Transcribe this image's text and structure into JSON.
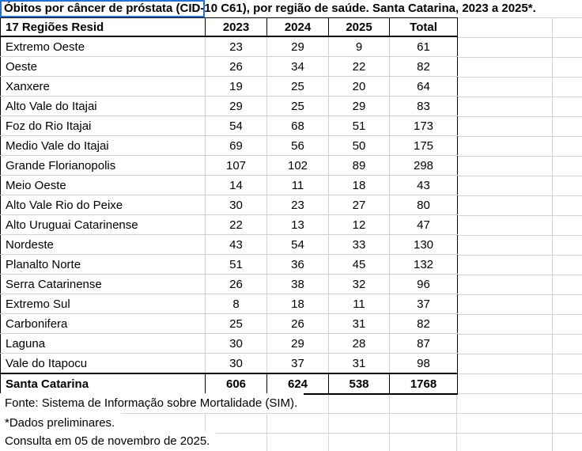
{
  "title": "Óbitos por câncer de próstata (CID-10 C61), por região de saúde. Santa Catarina, 2023 a 2025*.",
  "table": {
    "header": [
      "17 Regiões Resid",
      "2023",
      "2024",
      "2025",
      "Total"
    ],
    "rows": [
      {
        "region": "Extremo Oeste",
        "values": [
          23,
          29,
          9,
          61
        ]
      },
      {
        "region": "Oeste",
        "values": [
          26,
          34,
          22,
          82
        ]
      },
      {
        "region": "Xanxere",
        "values": [
          19,
          25,
          20,
          64
        ]
      },
      {
        "region": "Alto Vale do Itajai",
        "values": [
          29,
          25,
          29,
          83
        ]
      },
      {
        "region": "Foz do Rio Itajai",
        "values": [
          54,
          68,
          51,
          173
        ]
      },
      {
        "region": "Medio Vale do Itajai",
        "values": [
          69,
          56,
          50,
          175
        ]
      },
      {
        "region": "Grande Florianopolis",
        "values": [
          107,
          102,
          89,
          298
        ]
      },
      {
        "region": "Meio Oeste",
        "values": [
          14,
          11,
          18,
          43
        ]
      },
      {
        "region": "Alto Vale Rio do Peixe",
        "values": [
          30,
          23,
          27,
          80
        ]
      },
      {
        "region": "Alto Uruguai Catarinense",
        "values": [
          22,
          13,
          12,
          47
        ]
      },
      {
        "region": "Nordeste",
        "values": [
          43,
          54,
          33,
          130
        ]
      },
      {
        "region": "Planalto Norte",
        "values": [
          51,
          36,
          45,
          132
        ]
      },
      {
        "region": "Serra Catarinense",
        "values": [
          26,
          38,
          32,
          96
        ]
      },
      {
        "region": "Extremo Sul",
        "values": [
          8,
          18,
          11,
          37
        ]
      },
      {
        "region": "Carbonifera",
        "values": [
          25,
          26,
          31,
          82
        ]
      },
      {
        "region": "Laguna",
        "values": [
          30,
          29,
          28,
          87
        ]
      },
      {
        "region": "Vale do Itapocu",
        "values": [
          30,
          37,
          31,
          98
        ]
      }
    ],
    "total_row": {
      "region": "Santa Catarina",
      "values": [
        606,
        624,
        538,
        1768
      ]
    }
  },
  "footnotes": [
    "Fonte: Sistema de Informação sobre Mortalidade (SIM).",
    "*Dados preliminares.",
    "Consulta em 05 de novembro de 2025."
  ],
  "colors": {
    "selection_blue": "#1a73e8",
    "gridline_gray": "#d4d4d4",
    "table_border_black": "#000000",
    "background": "#ffffff",
    "text": "#000000"
  }
}
